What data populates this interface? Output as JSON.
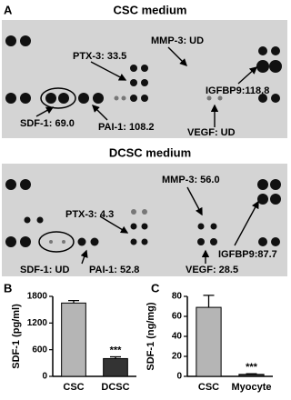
{
  "panels": [
    "A",
    "B",
    "C"
  ],
  "blots": [
    {
      "title": "CSC medium",
      "labels": [
        "PTX-3: 33.5",
        "MMP-3: UD",
        "IGFBP9:118.8",
        "SDF-1: 69.0",
        "PAI-1: 108.2",
        "VEGF: UD"
      ]
    },
    {
      "title": "DCSC medium",
      "labels": [
        "MMP-3: 56.0",
        "PTX-3: 4.3",
        "IGFBP9:87.7",
        "SDF-1: UD",
        "PAI-1: 52.8",
        "VEGF: 28.5"
      ]
    }
  ],
  "chart_data": [
    {
      "type": "bar",
      "ylabel": "SDF-1 (pg/ml)",
      "categories": [
        "CSC",
        "DCSC"
      ],
      "values": [
        1650,
        400
      ],
      "errors": [
        55,
        40
      ],
      "colors": [
        "#b5b5b5",
        "#333333"
      ],
      "ylim": [
        0,
        1800
      ],
      "yticks": [
        0,
        600,
        1200,
        1800
      ],
      "annotation": {
        "text": "***",
        "x": "DCSC"
      }
    },
    {
      "type": "bar",
      "ylabel": "SDF-1 (ng/mg)",
      "categories": [
        "CSC",
        "Myocyte"
      ],
      "values": [
        69,
        2
      ],
      "errors": [
        12,
        0.6
      ],
      "colors": [
        "#b5b5b5",
        "#333333"
      ],
      "ylim": [
        0,
        80
      ],
      "yticks": [
        0,
        20,
        40,
        60,
        80
      ],
      "annotation": {
        "text": "***",
        "x": "Myocyte"
      }
    }
  ]
}
